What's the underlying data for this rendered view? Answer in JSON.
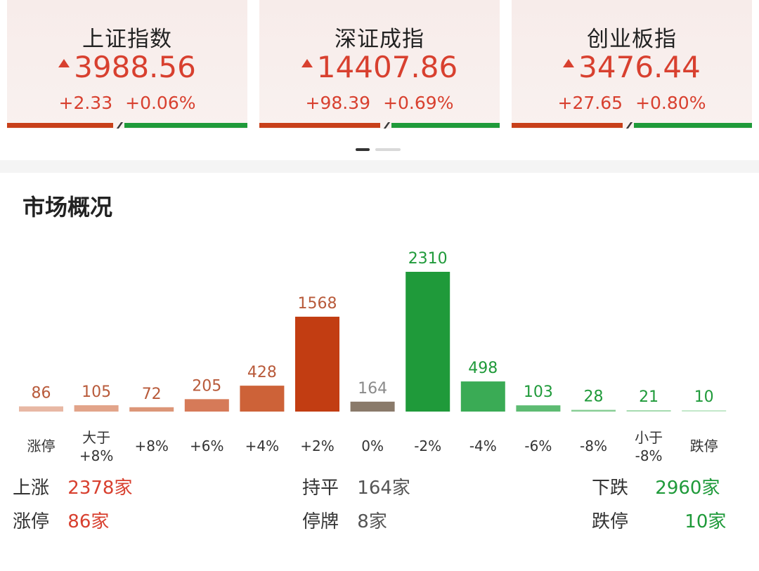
{
  "indices": [
    {
      "name": "上证指数",
      "price": "3988.56",
      "change": "+2.33",
      "pct": "+0.06%",
      "up_ratio": 0.46
    },
    {
      "name": "深证成指",
      "price": "14407.86",
      "change": "+98.39",
      "pct": "+0.69%",
      "up_ratio": 0.52
    },
    {
      "name": "创业板指",
      "price": "3476.44",
      "change": "+27.65",
      "pct": "+0.80%",
      "up_ratio": 0.48
    }
  ],
  "pager": {
    "count": 2,
    "active": 0
  },
  "market": {
    "title": "市场概况",
    "summary": {
      "up_label": "上涨",
      "up_value": "2378家",
      "flat_label": "持平",
      "flat_value": "164家",
      "down_label": "下跌",
      "down_value": "2960家",
      "limit_up_label": "涨停",
      "limit_up_value": "86家",
      "halt_label": "停牌",
      "halt_value": "8家",
      "limit_down_label": "跌停",
      "limit_down_value": "10家"
    }
  },
  "colors": {
    "up": "#d8402f",
    "down": "#1f9a3a",
    "flat": "#8a7a6a"
  },
  "chart_data": {
    "type": "bar",
    "categories": [
      "涨停",
      "大于\n+8%",
      "+8%",
      "+6%",
      "+4%",
      "+2%",
      "0%",
      "-2%",
      "-4%",
      "-6%",
      "-8%",
      "小于\n-8%",
      "跌停"
    ],
    "values": [
      86,
      105,
      72,
      205,
      428,
      1568,
      164,
      2310,
      498,
      103,
      28,
      21,
      10
    ],
    "bar_colors": [
      "#e8b8a4",
      "#e2a48a",
      "#dc9678",
      "#d67a58",
      "#cd6238",
      "#c23d12",
      "#8a7a6a",
      "#1f9a3a",
      "#3aab55",
      "#5dbb72",
      "#86cd93",
      "#a6dbb0",
      "#c3e8ca"
    ],
    "label_colors": [
      "#b85a3a",
      "#b85a3a",
      "#b85a3a",
      "#b85a3a",
      "#b85a3a",
      "#b85a3a",
      "#8a8a8a",
      "#1f9a3a",
      "#1f9a3a",
      "#1f9a3a",
      "#1f9a3a",
      "#1f9a3a",
      "#1f9a3a"
    ],
    "ylim": [
      0,
      2310
    ]
  }
}
